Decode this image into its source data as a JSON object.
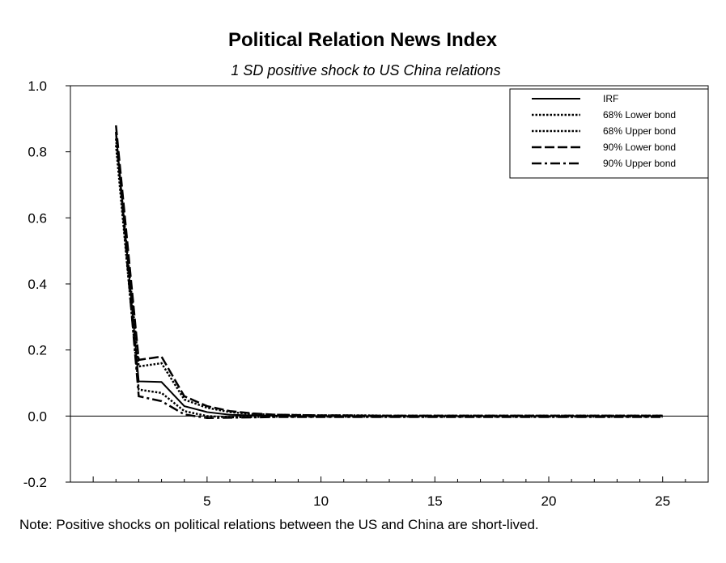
{
  "chart_data": {
    "type": "line",
    "title": "Political Relation News Index",
    "subtitle": "1 SD positive shock to US China relations",
    "xlabel": "",
    "ylabel": "",
    "xlim": [
      -1,
      27
    ],
    "ylim": [
      -0.2,
      1.0
    ],
    "x_ticks": [
      5,
      10,
      15,
      20,
      25
    ],
    "y_ticks": [
      {
        "value": 1.0,
        "label": "1.0"
      },
      {
        "value": 0.8,
        "label": "0.8"
      },
      {
        "value": 0.6,
        "label": "0.6"
      },
      {
        "value": 0.4,
        "label": "0.4"
      },
      {
        "value": 0.2,
        "label": "0.2"
      },
      {
        "value": 0.0,
        "label": "0.0"
      },
      {
        "value": -0.2,
        "label": "-0.2"
      }
    ],
    "x": [
      1,
      2,
      3,
      4,
      5,
      6,
      7,
      8,
      9,
      10,
      11,
      12,
      13,
      14,
      15,
      16,
      17,
      18,
      19,
      20,
      21,
      22,
      23,
      24,
      25
    ],
    "series": [
      {
        "name": "IRF",
        "style": "solid",
        "values": [
          0.86,
          0.105,
          0.103,
          0.03,
          0.012,
          0.004,
          0.002,
          0.001,
          0.0,
          0.0,
          0.0,
          0.0,
          0.0,
          0.0,
          0.0,
          0.0,
          0.0,
          0.0,
          0.0,
          0.0,
          0.0,
          0.0,
          0.0,
          0.0,
          0.0
        ]
      },
      {
        "name": "68% Lower bond",
        "style": "dotted",
        "values": [
          0.82,
          0.08,
          0.07,
          0.015,
          0.0,
          -0.004,
          -0.003,
          -0.002,
          -0.002,
          -0.002,
          -0.002,
          -0.002,
          -0.002,
          -0.002,
          -0.002,
          -0.002,
          -0.002,
          -0.002,
          -0.002,
          -0.002,
          -0.002,
          -0.002,
          -0.002,
          -0.002,
          -0.002
        ]
      },
      {
        "name": "68% Upper bond",
        "style": "dotted",
        "values": [
          0.84,
          0.15,
          0.16,
          0.05,
          0.025,
          0.012,
          0.006,
          0.004,
          0.003,
          0.002,
          0.002,
          0.002,
          0.001,
          0.001,
          0.001,
          0.001,
          0.001,
          0.001,
          0.001,
          0.001,
          0.001,
          0.001,
          0.001,
          0.001,
          0.001
        ]
      },
      {
        "name": "90% Lower bond",
        "style": "long-dash",
        "values": [
          0.88,
          0.17,
          0.18,
          0.06,
          0.03,
          0.015,
          0.008,
          0.004,
          0.003,
          0.002,
          0.002,
          0.001,
          0.001,
          0.001,
          0.001,
          0.001,
          0.001,
          0.001,
          0.001,
          0.001,
          0.001,
          0.001,
          0.001,
          0.001,
          0.001
        ]
      },
      {
        "name": "90% Upper bond",
        "style": "dash-dot",
        "values": [
          0.86,
          0.06,
          0.045,
          0.005,
          -0.006,
          -0.005,
          -0.004,
          -0.003,
          -0.003,
          -0.003,
          -0.003,
          -0.003,
          -0.003,
          -0.003,
          -0.003,
          -0.003,
          -0.003,
          -0.003,
          -0.003,
          -0.003,
          -0.003,
          -0.003,
          -0.003,
          -0.003,
          -0.003
        ]
      }
    ],
    "legend": "top-right",
    "grid": false,
    "zero_line": true
  },
  "note": "Note: Positive shocks on political relations between the US and China are short-lived."
}
